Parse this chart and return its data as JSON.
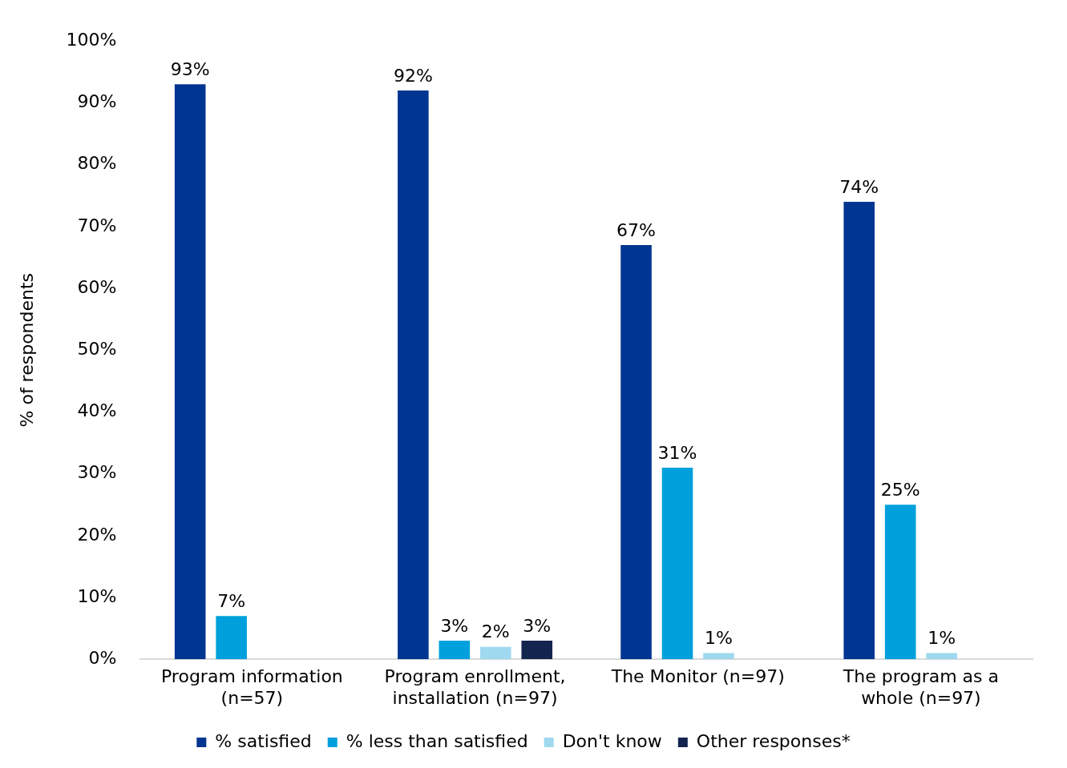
{
  "chart_data": {
    "type": "bar",
    "ylabel": "% of respondents",
    "categories": [
      "Program information (n=57)",
      "Program enrollment, installation (n=97)",
      "The Monitor (n=97)",
      "The program as a whole (n=97)"
    ],
    "series": [
      {
        "name": "% satisfied",
        "color": "#003591",
        "values": [
          93,
          92,
          67,
          74
        ],
        "value_labels": [
          "93%",
          "92%",
          "67%",
          "74%"
        ]
      },
      {
        "name": "% less than satisfied",
        "color": "#00a0dc",
        "values": [
          7,
          3,
          31,
          25
        ],
        "value_labels": [
          "7%",
          "3%",
          "31%",
          "25%"
        ]
      },
      {
        "name": "Don't know",
        "color": "#9fd9ef",
        "values": [
          null,
          2,
          1,
          1
        ],
        "value_labels": [
          null,
          "2%",
          "1%",
          "1%"
        ]
      },
      {
        "name": "Other responses*",
        "color": "#13244f",
        "values": [
          null,
          3,
          null,
          null
        ],
        "value_labels": [
          null,
          "3%",
          null,
          null
        ]
      }
    ],
    "ylim": [
      0,
      100
    ],
    "yticks": [
      {
        "value": 0,
        "label": "0%"
      },
      {
        "value": 10,
        "label": "10%"
      },
      {
        "value": 20,
        "label": "20%"
      },
      {
        "value": 30,
        "label": "30%"
      },
      {
        "value": 40,
        "label": "40%"
      },
      {
        "value": 50,
        "label": "50%"
      },
      {
        "value": 60,
        "label": "60%"
      },
      {
        "value": 70,
        "label": "70%"
      },
      {
        "value": 80,
        "label": "80%"
      },
      {
        "value": 90,
        "label": "90%"
      },
      {
        "value": 100,
        "label": "100%"
      }
    ],
    "grid": false,
    "legend": "bottom"
  }
}
